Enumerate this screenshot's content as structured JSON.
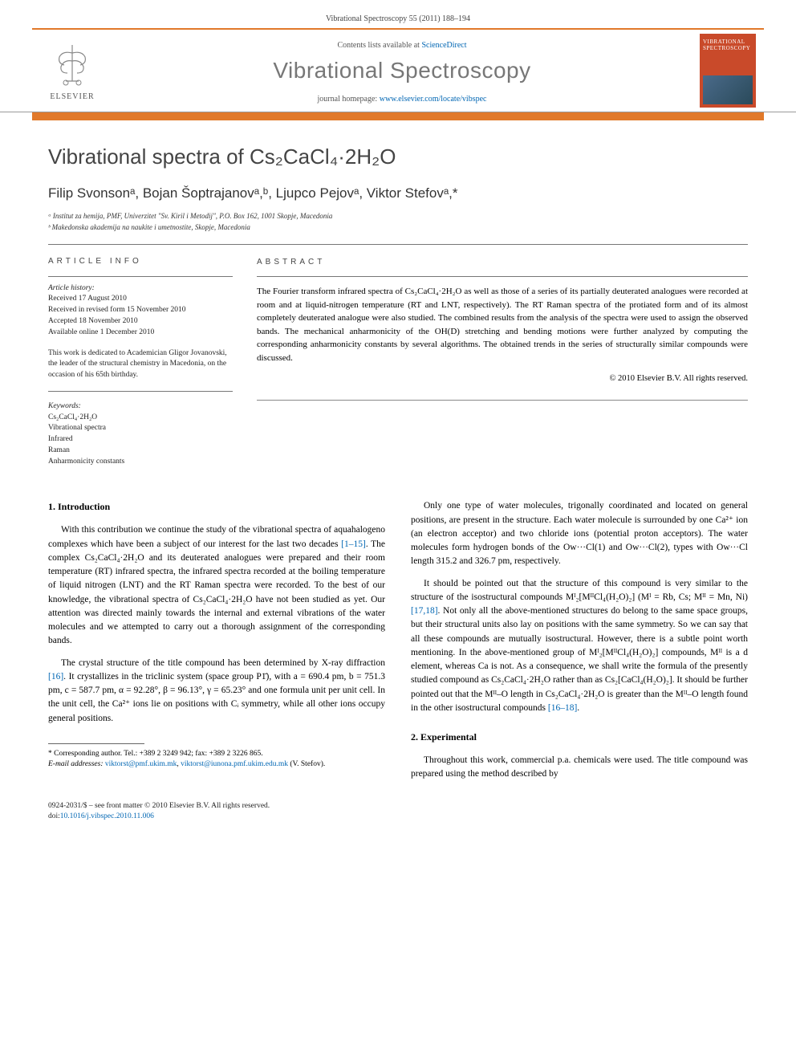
{
  "header": {
    "running_head": "Vibrational Spectroscopy 55 (2011) 188–194",
    "contents_prefix": "Contents lists available at ",
    "contents_link": "ScienceDirect",
    "journal_name": "Vibrational Spectroscopy",
    "homepage_prefix": "journal homepage: ",
    "homepage_url": "www.elsevier.com/locate/vibspec",
    "publisher_label": "ELSEVIER",
    "cover_text": "VIBRATIONAL SPECTROSCOPY"
  },
  "title": "Vibrational spectra of Cs₂CaCl₄·2H₂O",
  "authors_html": "Filip Svonsonᵃ, Bojan Šoptrajanovᵃ,ᵇ, Ljupco Pejovᵃ, Viktor Stefovᵃ,*",
  "affiliations": {
    "a": "ᵃ Institut za hemija, PMF, Univerzitet \"Sv. Kiril i Metodij\", P.O. Box 162, 1001 Skopje, Macedonia",
    "b": "ᵇ Makedonska akademija na naukite i umetnostite, Skopje, Macedonia"
  },
  "article_info": {
    "heading": "ARTICLE INFO",
    "history_label": "Article history:",
    "received": "Received 17 August 2010",
    "revised": "Received in revised form 15 November 2010",
    "accepted": "Accepted 18 November 2010",
    "online": "Available online 1 December 2010",
    "dedication": "This work is dedicated to Academician Gligor Jovanovski, the leader of the structural chemistry in Macedonia, on the occasion of his 65th birthday.",
    "keywords_label": "Keywords:",
    "keywords": [
      "Cs₂CaCl₄·2H₂O",
      "Vibrational spectra",
      "Infrared",
      "Raman",
      "Anharmonicity constants"
    ]
  },
  "abstract": {
    "heading": "ABSTRACT",
    "text": "The Fourier transform infrared spectra of Cs₂CaCl₄·2H₂O as well as those of a series of its partially deuterated analogues were recorded at room and at liquid-nitrogen temperature (RT and LNT, respectively). The RT Raman spectra of the protiated form and of its almost completely deuterated analogue were also studied. The combined results from the analysis of the spectra were used to assign the observed bands. The mechanical anharmonicity of the OH(D) stretching and bending motions were further analyzed by computing the corresponding anharmonicity constants by several algorithms. The obtained trends in the series of structurally similar compounds were discussed.",
    "copyright": "© 2010 Elsevier B.V. All rights reserved."
  },
  "sections": {
    "intro_heading": "1.  Introduction",
    "intro_p1": "With this contribution we continue the study of the vibrational spectra of aquahalogeno complexes which have been a subject of our interest for the last two decades [1–15]. The complex Cs₂CaCl₄·2H₂O and its deuterated analogues were prepared and their room temperature (RT) infrared spectra, the infrared spectra recorded at the boiling temperature of liquid nitrogen (LNT) and the RT Raman spectra were recorded. To the best of our knowledge, the vibrational spectra of Cs₂CaCl₄·2H₂O have not been studied as yet. Our attention was directed mainly towards the internal and external vibrations of the water molecules and we attempted to carry out a thorough assignment of the corresponding bands.",
    "intro_p2": "The crystal structure of the title compound has been determined by X-ray diffraction [16]. It crystallizes in the triclinic system (space group P1̄), with a = 690.4 pm, b = 751.3 pm, c = 587.7 pm, α = 92.28°, β = 96.13°, γ = 65.23° and one formula unit per unit cell. In the unit cell, the Ca²⁺ ions lie on positions with Cᵢ symmetry, while all other ions occupy general positions.",
    "intro_p3": "Only one type of water molecules, trigonally coordinated and located on general positions, are present in the structure. Each water molecule is surrounded by one Ca²⁺ ion (an electron acceptor) and two chloride ions (potential proton acceptors). The water molecules form hydrogen bonds of the Ow···Cl(1) and Ow···Cl(2), types with Ow···Cl length 315.2 and 326.7 pm, respectively.",
    "intro_p4": "It should be pointed out that the structure of this compound is very similar to the structure of the isostructural compounds Mᴵ₂[MᴵᴵCl₄(H₂O)₂] (Mᴵ = Rb, Cs; Mᴵᴵ = Mn, Ni) [17,18]. Not only all the above-mentioned structures do belong to the same space groups, but their structural units also lay on positions with the same symmetry. So we can say that all these compounds are mutually isostructural. However, there is a subtle point worth mentioning. In the above-mentioned group of Mᴵ₂[MᴵᴵCl₄(H₂O)₂] compounds, Mᴵᴵ is a d element, whereas Ca is not. As a consequence, we shall write the formula of the presently studied compound as Cs₂CaCl₄·2H₂O rather than as Cs₂[CaCl₄(H₂O)₂]. It should be further pointed out that the Mᴵᴵ–O length in Cs₂CaCl₄·2H₂O is greater than the Mᴵᴵ–O length found in the other isostructural compounds [16–18].",
    "exp_heading": "2.  Experimental",
    "exp_p1": "Throughout this work, commercial p.a. chemicals were used. The title compound was prepared using the method described by"
  },
  "footnotes": {
    "corr": "* Corresponding author. Tel.: +389 2 3249 942; fax: +389 2 3226 865.",
    "email_label": "E-mail addresses: ",
    "email1": "viktorst@pmf.ukim.mk",
    "email_sep": ", ",
    "email2": "viktorst@iunona.pmf.ukim.edu.mk",
    "email_tail": " (V. Stefov)."
  },
  "footer": {
    "line1": "0924-2031/$ – see front matter © 2010 Elsevier B.V. All rights reserved.",
    "doi_prefix": "doi:",
    "doi": "10.1016/j.vibspec.2010.11.006"
  },
  "colors": {
    "accent": "#e1792a",
    "link": "#0066b3",
    "journal_cover_bg": "#c94a2a"
  }
}
